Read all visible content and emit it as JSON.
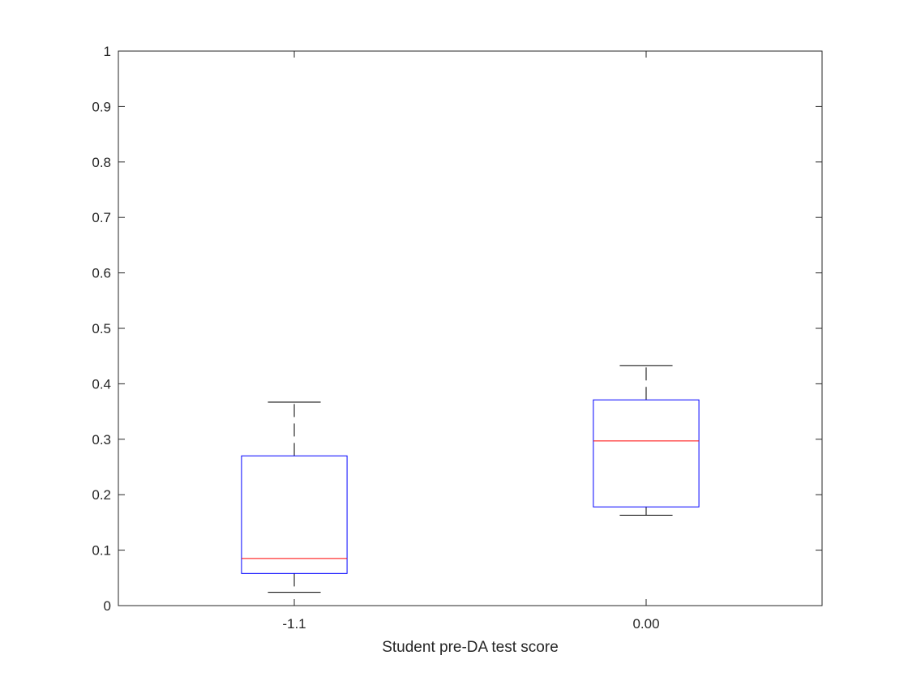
{
  "chart_data": {
    "type": "box",
    "title": "",
    "xlabel": "Student pre-DA test score",
    "ylabel": "",
    "ylim": [
      0,
      1
    ],
    "yticks": [
      "0",
      "0.1",
      "0.2",
      "0.3",
      "0.4",
      "0.5",
      "0.6",
      "0.7",
      "0.8",
      "0.9",
      "1"
    ],
    "categories": [
      "-1.1",
      "0.00"
    ],
    "boxes": [
      {
        "category": "-1.1",
        "whisker_low": 0.024,
        "q1": 0.058,
        "median": 0.085,
        "q3": 0.27,
        "whisker_high": 0.367
      },
      {
        "category": "0.00",
        "whisker_low": 0.163,
        "q1": 0.178,
        "median": 0.297,
        "q3": 0.371,
        "whisker_high": 0.433
      }
    ],
    "grid": false,
    "colors": {
      "box": "#0000ff",
      "median": "#ff0000",
      "whisker": "#000000",
      "axis": "#262626"
    }
  }
}
